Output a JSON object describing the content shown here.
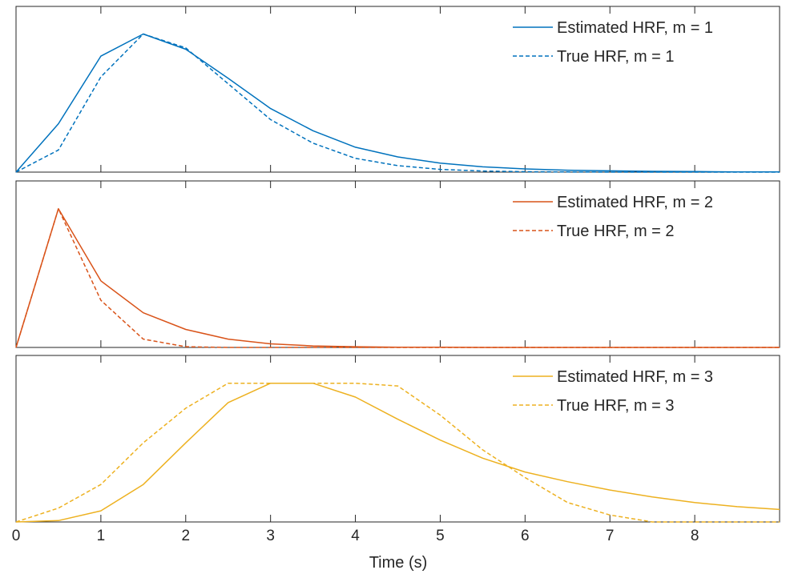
{
  "chart_data": {
    "type": "line",
    "xlabel": "Time (s)",
    "xlim": [
      0,
      9
    ],
    "xticks": [
      "0",
      "1",
      "2",
      "3",
      "4",
      "5",
      "6",
      "7",
      "8"
    ],
    "grid": false,
    "legend_position": "top-right",
    "panels": [
      {
        "color": "#0072BD",
        "ylim": [
          0,
          1.2
        ],
        "series": [
          {
            "name": "Estimated HRF, m = 1",
            "style": "solid",
            "x": [
              0,
              0.5,
              1,
              1.5,
              2,
              2.5,
              3,
              3.5,
              4,
              4.5,
              5,
              5.5,
              6,
              6.5,
              7,
              7.5,
              8,
              8.5,
              9
            ],
            "y": [
              0,
              0.35,
              0.84,
              1.0,
              0.89,
              0.68,
              0.46,
              0.3,
              0.18,
              0.11,
              0.065,
              0.038,
              0.023,
              0.014,
              0.009,
              0.006,
              0.004,
              0.002,
              0.001
            ]
          },
          {
            "name": "True HRF, m = 1",
            "style": "dashed",
            "x": [
              0,
              0.5,
              1,
              1.5,
              2,
              2.5,
              3,
              3.5,
              4,
              4.5,
              5,
              5.5,
              6,
              6.5,
              7,
              7.5,
              8,
              8.5,
              9
            ],
            "y": [
              0,
              0.16,
              0.69,
              1.0,
              0.9,
              0.64,
              0.38,
              0.21,
              0.1,
              0.047,
              0.02,
              0.008,
              0.003,
              0.001,
              0,
              0,
              0,
              0,
              0
            ]
          }
        ]
      },
      {
        "color": "#D95319",
        "ylim": [
          0,
          1.2
        ],
        "series": [
          {
            "name": "Estimated HRF, m = 2",
            "style": "solid",
            "x": [
              0,
              0.5,
              1,
              1.5,
              2,
              2.5,
              3,
              3.5,
              4,
              4.5,
              5,
              5.5,
              6,
              6.5,
              7,
              7.5,
              8,
              8.5,
              9
            ],
            "y": [
              0,
              1.0,
              0.48,
              0.25,
              0.13,
              0.06,
              0.026,
              0.011,
              0.005,
              0.002,
              0.001,
              0,
              0,
              0,
              0,
              0,
              0,
              0,
              0
            ]
          },
          {
            "name": "True HRF, m = 2",
            "style": "dashed",
            "x": [
              0,
              0.5,
              1,
              1.5,
              2,
              2.5,
              3,
              3.5,
              4,
              4.5,
              5,
              5.5,
              6,
              6.5,
              7,
              7.5,
              8,
              8.5,
              9
            ],
            "y": [
              0,
              1.0,
              0.34,
              0.06,
              0.005,
              0,
              0,
              0,
              0,
              0,
              0,
              0,
              0,
              0,
              0,
              0,
              0,
              0,
              0
            ]
          }
        ]
      },
      {
        "color": "#EDB120",
        "ylim": [
          0,
          1.2
        ],
        "series": [
          {
            "name": "Estimated HRF, m = 3",
            "style": "solid",
            "x": [
              0,
              0.5,
              1,
              1.5,
              2,
              2.5,
              3,
              3.5,
              4,
              4.5,
              5,
              5.5,
              6,
              6.5,
              7,
              7.5,
              8,
              8.5,
              9
            ],
            "y": [
              0,
              0.01,
              0.08,
              0.27,
              0.57,
              0.86,
              1.0,
              1.0,
              0.9,
              0.74,
              0.59,
              0.46,
              0.36,
              0.29,
              0.23,
              0.18,
              0.14,
              0.11,
              0.09
            ]
          },
          {
            "name": "True HRF, m = 3",
            "style": "dashed",
            "x": [
              0,
              0.5,
              1,
              1.5,
              2,
              2.5,
              3,
              3.5,
              4,
              4.5,
              5,
              5.5,
              6,
              6.5,
              7,
              7.5,
              8,
              8.5,
              9
            ],
            "y": [
              0,
              0.1,
              0.27,
              0.57,
              0.82,
              1.0,
              1.0,
              1.0,
              1.0,
              0.98,
              0.77,
              0.52,
              0.32,
              0.14,
              0.05,
              0,
              0,
              0,
              0
            ]
          }
        ]
      }
    ]
  }
}
